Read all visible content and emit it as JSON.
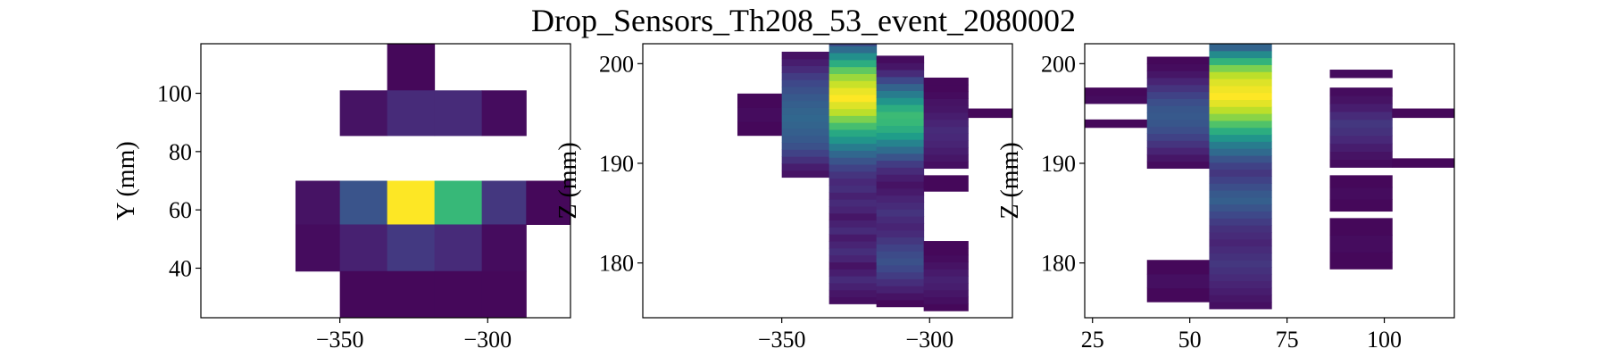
{
  "figure": {
    "title": "Drop_Sensors_Th208_53_event_2080002"
  },
  "colormap": {
    "name": "viridis",
    "stops": [
      "#440154",
      "#482878",
      "#3e4989",
      "#31688e",
      "#26828e",
      "#1f9e89",
      "#35b779",
      "#6ece58",
      "#b5de2b",
      "#fde725"
    ]
  },
  "chart_data": [
    {
      "type": "heatmap",
      "title": "",
      "xlabel": "",
      "ylabel": "Y (mm)",
      "xlim": [
        -397,
        -272
      ],
      "ylim": [
        23,
        117
      ],
      "xticks": [
        -350,
        -300
      ],
      "xtick_labels": [
        "−350",
        "−300"
      ],
      "yticks": [
        40,
        60,
        80,
        100
      ],
      "ytick_labels": [
        "40",
        "60",
        "80",
        "100"
      ],
      "cells": [
        {
          "x0": -334,
          "x1": -318,
          "y0": 101,
          "y1": 117,
          "v": 0.02
        },
        {
          "x0": -350,
          "x1": -334,
          "y0": 85.5,
          "y1": 101,
          "v": 0.05
        },
        {
          "x0": -334,
          "x1": -318,
          "y0": 85.5,
          "y1": 101,
          "v": 0.12
        },
        {
          "x0": -318,
          "x1": -302,
          "y0": 85.5,
          "y1": 101,
          "v": 0.12
        },
        {
          "x0": -302,
          "x1": -287,
          "y0": 85.5,
          "y1": 101,
          "v": 0.03
        },
        {
          "x0": -365,
          "x1": -350,
          "y0": 55,
          "y1": 70,
          "v": 0.05
        },
        {
          "x0": -350,
          "x1": -334,
          "y0": 55,
          "y1": 70,
          "v": 0.26
        },
        {
          "x0": -334,
          "x1": -318,
          "y0": 55,
          "y1": 70,
          "v": 1.0
        },
        {
          "x0": -318,
          "x1": -302,
          "y0": 55,
          "y1": 70,
          "v": 0.67
        },
        {
          "x0": -302,
          "x1": -287,
          "y0": 55,
          "y1": 70,
          "v": 0.16
        },
        {
          "x0": -287,
          "x1": -272,
          "y0": 55,
          "y1": 70,
          "v": 0.02
        },
        {
          "x0": -365,
          "x1": -350,
          "y0": 39,
          "y1": 55,
          "v": 0.03
        },
        {
          "x0": -350,
          "x1": -334,
          "y0": 39,
          "y1": 55,
          "v": 0.09
        },
        {
          "x0": -334,
          "x1": -318,
          "y0": 39,
          "y1": 55,
          "v": 0.17
        },
        {
          "x0": -318,
          "x1": -302,
          "y0": 39,
          "y1": 55,
          "v": 0.12
        },
        {
          "x0": -302,
          "x1": -287,
          "y0": 39,
          "y1": 55,
          "v": 0.03
        },
        {
          "x0": -350,
          "x1": -334,
          "y0": 23,
          "y1": 39,
          "v": 0.02
        },
        {
          "x0": -334,
          "x1": -318,
          "y0": 23,
          "y1": 39,
          "v": 0.02
        },
        {
          "x0": -318,
          "x1": -302,
          "y0": 23,
          "y1": 39,
          "v": 0.02
        },
        {
          "x0": -302,
          "x1": -287,
          "y0": 23,
          "y1": 39,
          "v": 0.02
        }
      ]
    },
    {
      "type": "heatmap",
      "title": "",
      "xlabel": "",
      "ylabel": "Z (mm)",
      "xlim": [
        -397,
        -272
      ],
      "ylim": [
        174.5,
        202
      ],
      "xticks": [
        -350,
        -300
      ],
      "xtick_labels": [
        "−350",
        "−300"
      ],
      "yticks": [
        180,
        190,
        200
      ],
      "ytick_labels": [
        "180",
        "190",
        "200"
      ],
      "columns": [
        {
          "x0": -365,
          "x1": -350,
          "z0": 192.8,
          "dz": 1.4,
          "values": [
            0.02,
            0.03,
            0.02
          ]
        },
        {
          "x0": -350,
          "x1": -334,
          "z0": 188.6,
          "dz": 0.7,
          "values": [
            0.05,
            0.08,
            0.14,
            0.2,
            0.25,
            0.28,
            0.3,
            0.32,
            0.33,
            0.32,
            0.3,
            0.28,
            0.25,
            0.22,
            0.18,
            0.12,
            0.08,
            0.05
          ]
        },
        {
          "x0": -334,
          "x1": -318,
          "z0": 175.9,
          "dz": 0.7,
          "values": [
            0.04,
            0.06,
            0.09,
            0.12,
            0.08,
            0.05,
            0.1,
            0.13,
            0.1,
            0.07,
            0.12,
            0.09,
            0.06,
            0.1,
            0.12,
            0.09,
            0.13,
            0.11,
            0.15,
            0.2,
            0.26,
            0.33,
            0.42,
            0.52,
            0.6,
            0.7,
            0.8,
            0.9,
            0.95,
            1.0,
            0.97,
            0.92,
            0.85,
            0.75,
            0.62,
            0.5,
            0.35,
            0.22
          ]
        },
        {
          "x0": -318,
          "x1": -302,
          "z0": 175.6,
          "dz": 0.7,
          "values": [
            0.02,
            0.05,
            0.09,
            0.13,
            0.18,
            0.22,
            0.25,
            0.23,
            0.2,
            0.16,
            0.12,
            0.1,
            0.12,
            0.15,
            0.12,
            0.1,
            0.07,
            0.05,
            0.08,
            0.12,
            0.18,
            0.26,
            0.35,
            0.45,
            0.55,
            0.62,
            0.67,
            0.68,
            0.62,
            0.52,
            0.42,
            0.32,
            0.22,
            0.12,
            0.06,
            0.03
          ]
        },
        {
          "x0": -302,
          "x1": -287,
          "z0": 175.2,
          "dz": 0.7,
          "values": [
            0.02,
            0.04,
            0.06,
            0.08,
            0.09,
            0.07,
            0.05,
            0.03,
            0.02,
            0.02
          ]
        },
        {
          "x0": -302,
          "x1": -287,
          "z0": 187.2,
          "dz": 1.6,
          "values": [
            0.02
          ]
        },
        {
          "x0": -302,
          "x1": -287,
          "z0": 189.5,
          "dz": 0.7,
          "values": [
            0.04,
            0.06,
            0.08,
            0.1,
            0.11,
            0.12,
            0.1,
            0.08,
            0.06,
            0.05,
            0.03,
            0.02,
            0.02
          ]
        },
        {
          "x0": -287,
          "x1": -272,
          "z0": 194.6,
          "dz": 0.9,
          "values": [
            0.02
          ]
        }
      ]
    },
    {
      "type": "heatmap",
      "title": "",
      "xlabel": "",
      "ylabel": "Z (mm)",
      "xlim": [
        23,
        118
      ],
      "ylim": [
        174.5,
        202
      ],
      "xticks": [
        25,
        50,
        75,
        100
      ],
      "xtick_labels": [
        "25",
        "50",
        "75",
        "100"
      ],
      "yticks": [
        180,
        190,
        200
      ],
      "ytick_labels": [
        "180",
        "190",
        "200"
      ],
      "columns": [
        {
          "x0": 23,
          "x1": 39,
          "z0": 193.6,
          "dz": 0.8,
          "values": [
            0.02
          ]
        },
        {
          "x0": 23,
          "x1": 39,
          "z0": 196.0,
          "dz": 0.8,
          "values": [
            0.03,
            0.02
          ]
        },
        {
          "x0": 39,
          "x1": 55,
          "z0": 189.5,
          "dz": 0.7,
          "values": [
            0.03,
            0.06,
            0.1,
            0.15,
            0.2,
            0.24,
            0.27,
            0.28,
            0.27,
            0.24,
            0.2,
            0.15,
            0.1,
            0.06,
            0.03,
            0.02
          ]
        },
        {
          "x0": 39,
          "x1": 55,
          "z0": 176.1,
          "dz": 1.4,
          "values": [
            0.02,
            0.04,
            0.02
          ]
        },
        {
          "x0": 55,
          "x1": 71,
          "z0": 175.4,
          "dz": 0.7,
          "values": [
            0.04,
            0.06,
            0.08,
            0.1,
            0.12,
            0.14,
            0.16,
            0.14,
            0.12,
            0.1,
            0.12,
            0.14,
            0.18,
            0.22,
            0.26,
            0.3,
            0.28,
            0.24,
            0.2,
            0.16,
            0.2,
            0.26,
            0.34,
            0.42,
            0.52,
            0.62,
            0.72,
            0.82,
            0.9,
            0.96,
            1.0,
            0.98,
            0.95,
            0.9,
            0.8,
            0.65,
            0.48,
            0.32,
            0.18
          ]
        },
        {
          "x0": 86,
          "x1": 102,
          "z0": 189.6,
          "dz": 0.8,
          "values": [
            0.03,
            0.05,
            0.08,
            0.11,
            0.14,
            0.16,
            0.12,
            0.08,
            0.05,
            0.03
          ]
        },
        {
          "x0": 86,
          "x1": 102,
          "z0": 185.2,
          "dz": 1.2,
          "values": [
            0.02,
            0.03,
            0.02
          ]
        },
        {
          "x0": 86,
          "x1": 102,
          "z0": 179.4,
          "dz": 1.7,
          "values": [
            0.02,
            0.03,
            0.02
          ]
        },
        {
          "x0": 86,
          "x1": 102,
          "z0": 198.6,
          "dz": 0.8,
          "values": [
            0.03
          ]
        },
        {
          "x0": 102,
          "x1": 118,
          "z0": 189.6,
          "dz": 0.9,
          "values": [
            0.02
          ]
        },
        {
          "x0": 102,
          "x1": 118,
          "z0": 194.6,
          "dz": 0.9,
          "values": [
            0.02
          ]
        }
      ]
    }
  ]
}
